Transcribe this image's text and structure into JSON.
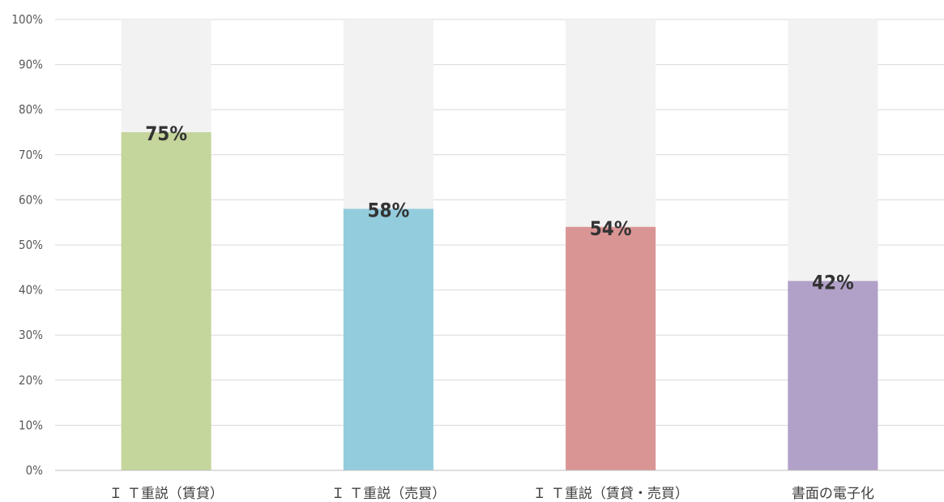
{
  "chart_data": {
    "type": "bar",
    "stacked_background": true,
    "categories": [
      "Ｉ Ｔ重説（賃貸）",
      "Ｉ Ｔ重説（売買）",
      "Ｉ Ｔ重説（賃貸・売買）",
      "書面の電子化"
    ],
    "values": [
      75,
      58,
      54,
      42
    ],
    "data_labels": [
      "75%",
      "58%",
      "54%",
      "42%"
    ],
    "bar_colors": [
      "#c4d69b",
      "#93cddd",
      "#d99594",
      "#b1a0c7"
    ],
    "background_color": "#f2f2f2",
    "ylim": [
      0,
      100
    ],
    "yticks": [
      0,
      10,
      20,
      30,
      40,
      50,
      60,
      70,
      80,
      90,
      100
    ],
    "ytick_labels": [
      "0%",
      "10%",
      "20%",
      "30%",
      "40%",
      "50%",
      "60%",
      "70%",
      "80%",
      "90%",
      "100%"
    ],
    "grid": true,
    "legend": "none"
  }
}
